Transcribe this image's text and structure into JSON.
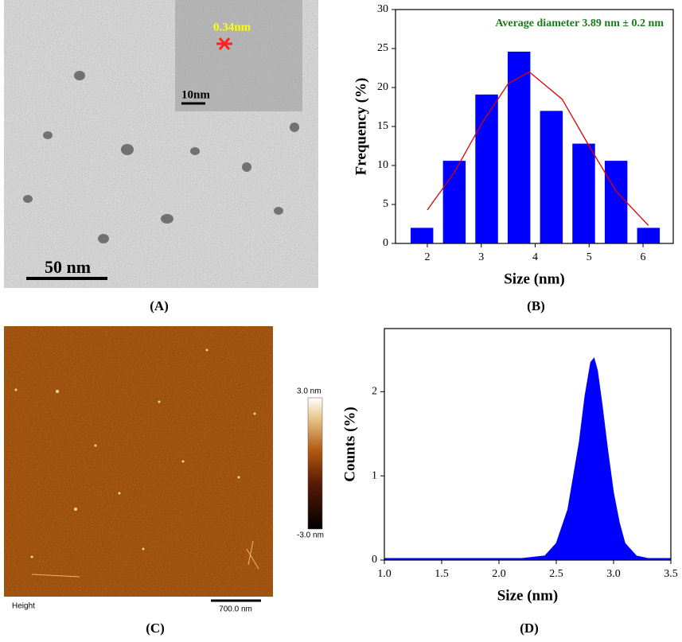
{
  "chart_data": [
    {
      "type": "bar",
      "annotation": "Average diameter 3.89 nm ± 0.2 nm",
      "annotation_color": "#1a7a1a",
      "xlabel": "Size (nm)",
      "ylabel": "Frequency (%)",
      "series": [
        {
          "type": "bar",
          "color": "#0000ff",
          "x": [
            1.9,
            2.5,
            3.1,
            3.7,
            4.3,
            4.9,
            5.5,
            6.1
          ],
          "values": [
            2,
            10.6,
            19.1,
            24.6,
            17,
            12.8,
            10.6,
            2
          ]
        },
        {
          "type": "line",
          "color": "#e00000",
          "x": [
            2.0,
            2.5,
            3.0,
            3.5,
            3.89,
            4.5,
            5.0,
            5.5,
            6.1
          ],
          "values": [
            4.3,
            9.1,
            15.3,
            20.5,
            22,
            18.5,
            12.5,
            6.7,
            2.3
          ]
        }
      ],
      "xlim": [
        1.41,
        6.56
      ],
      "xticks": [
        2,
        3,
        4,
        5,
        6
      ],
      "ylim": [
        0,
        30
      ],
      "yticks": [
        0,
        5,
        10,
        15,
        20,
        25,
        30
      ],
      "panel_label": "(B)"
    },
    {
      "type": "area",
      "xlabel": "Size (nm)",
      "ylabel": "Counts (%)",
      "series": [
        {
          "type": "area",
          "color": "#0000ff",
          "x": [
            1.0,
            2.2,
            2.4,
            2.5,
            2.6,
            2.7,
            2.75,
            2.8,
            2.83,
            2.86,
            2.9,
            2.95,
            3.0,
            3.05,
            3.1,
            3.2,
            3.3,
            3.5
          ],
          "values": [
            0.02,
            0.02,
            0.05,
            0.2,
            0.6,
            1.4,
            1.95,
            2.35,
            2.4,
            2.25,
            1.85,
            1.3,
            0.8,
            0.45,
            0.2,
            0.05,
            0.02,
            0.02
          ]
        }
      ],
      "xlim": [
        1.0,
        3.5
      ],
      "xticks": [
        {
          "value": 1.0,
          "label": "1.0"
        },
        1.5,
        {
          "value": 2.0,
          "label": "2.0"
        },
        2.5,
        {
          "value": 3.0,
          "label": "3.0"
        },
        3.5
      ],
      "ylim": [
        0,
        2.75
      ],
      "yticks": [
        0,
        1,
        2
      ],
      "panel_label": "(D)"
    }
  ],
  "images": {
    "tem": {
      "inset_spacing": "0.34nm",
      "inset_scale": "10nm",
      "scale_bar": "50 nm",
      "panel_label": "(A)"
    },
    "afm": {
      "colorbar_max": "3.0 nm",
      "colorbar_min": "-3.0 nm",
      "channel": "Height",
      "scale_bar": "700.0 nm",
      "panel_label": "(C)"
    }
  }
}
